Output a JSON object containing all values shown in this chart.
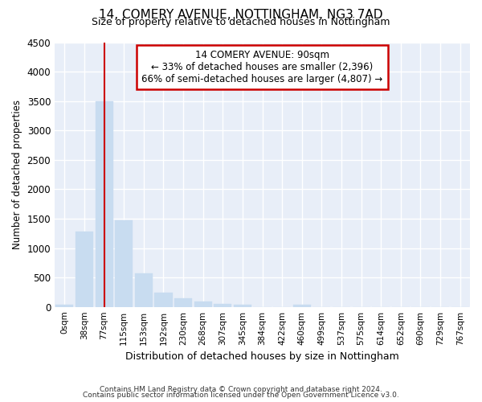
{
  "title1": "14, COMERY AVENUE, NOTTINGHAM, NG3 7AD",
  "title2": "Size of property relative to detached houses in Nottingham",
  "xlabel": "Distribution of detached houses by size in Nottingham",
  "ylabel": "Number of detached properties",
  "bar_color": "#c8dcf0",
  "bar_edgecolor": "#c8dcf0",
  "vline_color": "#cc0000",
  "vline_x": 2,
  "annotation_box_text": "14 COMERY AVENUE: 90sqm\n← 33% of detached houses are smaller (2,396)\n66% of semi-detached houses are larger (4,807) →",
  "annotation_box_color": "#cc0000",
  "categories": [
    "0sqm",
    "38sqm",
    "77sqm",
    "115sqm",
    "153sqm",
    "192sqm",
    "230sqm",
    "268sqm",
    "307sqm",
    "345sqm",
    "384sqm",
    "422sqm",
    "460sqm",
    "499sqm",
    "537sqm",
    "575sqm",
    "614sqm",
    "652sqm",
    "690sqm",
    "729sqm",
    "767sqm"
  ],
  "values": [
    30,
    1280,
    3500,
    1470,
    570,
    240,
    140,
    85,
    55,
    30,
    0,
    0,
    35,
    0,
    0,
    0,
    0,
    0,
    0,
    0,
    0
  ],
  "ylim": [
    0,
    4500
  ],
  "yticks": [
    0,
    500,
    1000,
    1500,
    2000,
    2500,
    3000,
    3500,
    4000,
    4500
  ],
  "footer1": "Contains HM Land Registry data © Crown copyright and database right 2024.",
  "footer2": "Contains public sector information licensed under the Open Government Licence v3.0.",
  "bg_color": "#ffffff",
  "plot_bg_color": "#e8eef8"
}
